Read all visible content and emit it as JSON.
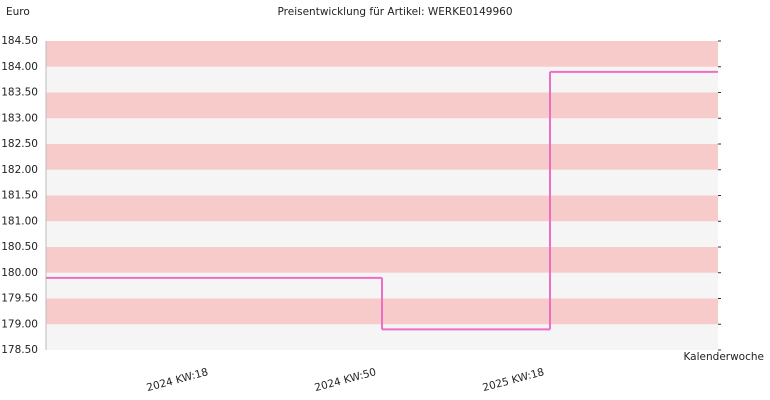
{
  "chart_data": {
    "type": "step",
    "title": "Preisentwicklung für Artikel: WERKE0149960",
    "y_label": "Euro",
    "x_label": "Kalenderwoche",
    "categories": [
      "2024 KW:18",
      "2024 KW:50",
      "2025 KW:18"
    ],
    "series": [
      {
        "color": "#ee6ec4",
        "values": [
          179.9,
          178.9,
          183.9
        ]
      }
    ],
    "ylim": [
      178.5,
      184.5
    ],
    "yticks": [
      {
        "value": 178.5,
        "label": "178.50"
      },
      {
        "value": 179,
        "label": "179.00"
      },
      {
        "value": 179.5,
        "label": "179.50"
      },
      {
        "value": 180,
        "label": "180.00"
      },
      {
        "value": 180.5,
        "label": "180.50"
      },
      {
        "value": 181,
        "label": "181.00"
      },
      {
        "value": 181.5,
        "label": "181.50"
      },
      {
        "value": 182,
        "label": "182.00"
      },
      {
        "value": 182.5,
        "label": "182.50"
      },
      {
        "value": 183,
        "label": "183.00"
      },
      {
        "value": 183.5,
        "label": "183.50"
      },
      {
        "value": 184,
        "label": "184.00"
      },
      {
        "value": 184.5,
        "label": "184.50"
      }
    ],
    "band_colors": [
      "#f5f5f5",
      "#f8cbcb"
    ]
  }
}
